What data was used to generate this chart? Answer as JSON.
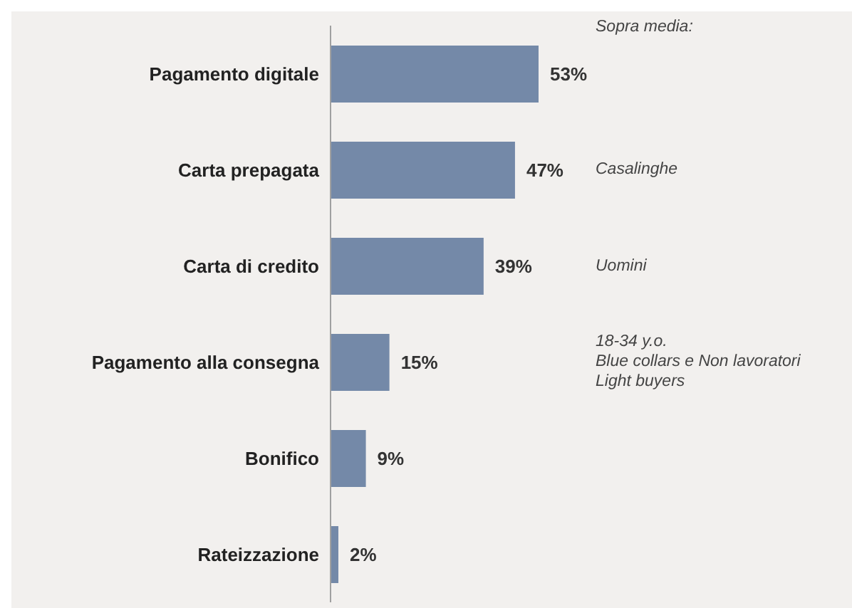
{
  "chart_data": {
    "type": "bar",
    "orientation": "horizontal",
    "categories": [
      "Pagamento digitale",
      "Carta prepagata",
      "Carta di credito",
      "Pagamento alla consegna",
      "Bonifico",
      "Rateizzazione"
    ],
    "values": [
      53,
      47,
      39,
      15,
      9,
      2
    ],
    "value_labels": [
      "53%",
      "47%",
      "39%",
      "15%",
      "9%",
      "2%"
    ],
    "color": "#7489a8",
    "annotations": [
      "Sopra media:",
      "Casalinghe",
      "Uomini",
      "18-34 y.o.\nBlue collars e Non lavoratori\nLight buyers"
    ]
  }
}
